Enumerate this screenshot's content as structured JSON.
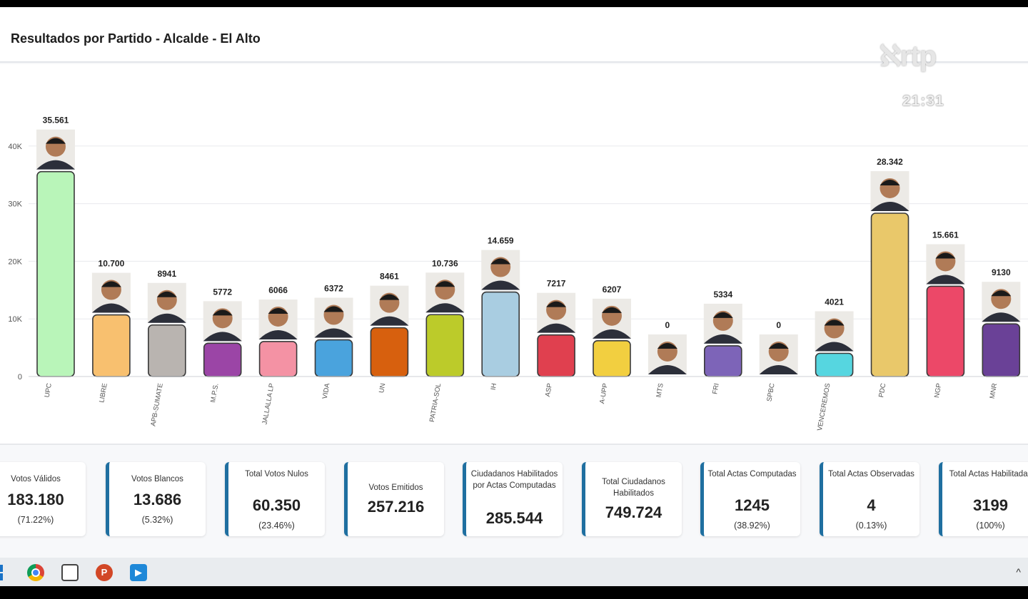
{
  "header": {
    "title": "Resultados por Partido - Alcalde - El Alto"
  },
  "overlay": {
    "logo_text": "ℵrtp",
    "clock": "21:31"
  },
  "chart_data": {
    "type": "bar",
    "title": "Resultados por Partido - Alcalde - El Alto",
    "xlabel": "",
    "ylabel": "",
    "ylim": [
      0,
      45000
    ],
    "yticks": [
      0,
      10000,
      20000,
      30000,
      40000
    ],
    "ytick_labels": [
      "0",
      "10K",
      "20K",
      "30K",
      "40K"
    ],
    "grid": true,
    "categories": [
      "UPC",
      "LIBRE",
      "APB-SUMATE",
      "M.P.S.",
      "JALLALLA LP",
      "VIDA",
      "UN",
      "PATRIA-SOL",
      "IH",
      "ASP",
      "A-UPP",
      "MTS",
      "FRI",
      "SPBC",
      "VENCEREMOS",
      "PDC",
      "NGP",
      "MNR"
    ],
    "values": [
      35561,
      10700,
      8941,
      5772,
      6066,
      6372,
      8461,
      10736,
      14659,
      7217,
      6207,
      0,
      5334,
      0,
      4021,
      28342,
      15661,
      9130
    ],
    "data_labels": [
      "35.561",
      "10.700",
      "8941",
      "5772",
      "6066",
      "6372",
      "8461",
      "10.736",
      "14.659",
      "7217",
      "6207",
      "0",
      "5334",
      "0",
      "4021",
      "28.342",
      "15.661",
      "9130"
    ],
    "colors": [
      "#b9f5b9",
      "#f8c06f",
      "#b9b4b0",
      "#9b45a6",
      "#f492a4",
      "#4aa3dd",
      "#d7600e",
      "#bccb2a",
      "#a9cde1",
      "#e0404f",
      "#f2cf40",
      "#888888",
      "#7d64b8",
      "#888888",
      "#56d6e0",
      "#e9c86a",
      "#ec4868",
      "#6a4197"
    ]
  },
  "stats": [
    {
      "label": "Votos Válidos",
      "value": "183.180",
      "pct": "(71.22%)"
    },
    {
      "label": "Votos Blancos",
      "value": "13.686",
      "pct": "(5.32%)"
    },
    {
      "label": "Total Votos Nulos",
      "value": "60.350",
      "pct": "(23.46%)"
    },
    {
      "label": "Votos Emitidos",
      "value": "257.216",
      "pct": ""
    },
    {
      "label": "Ciudadanos Habilitados por Actas Computadas",
      "value": "285.544",
      "pct": ""
    },
    {
      "label": "Total Ciudadanos Habilitados",
      "value": "749.724",
      "pct": ""
    },
    {
      "label": "Total Actas Computadas",
      "value": "1245",
      "pct": "(38.92%)"
    },
    {
      "label": "Total Actas Observadas",
      "value": "4",
      "pct": "(0.13%)"
    },
    {
      "label": "Total Actas Habilitadas",
      "value": "3199",
      "pct": "(100%)"
    }
  ],
  "taskbar": {
    "icons": [
      "windows-start-icon",
      "chrome-icon",
      "snipping-tool-icon",
      "powerpoint-icon",
      "media-player-icon"
    ],
    "ppt_glyph": "P",
    "media_glyph": "▶",
    "chevron_glyph": "^"
  },
  "colors": {
    "accent_border": "#1f6fa0",
    "grid": "#e8eaed"
  }
}
